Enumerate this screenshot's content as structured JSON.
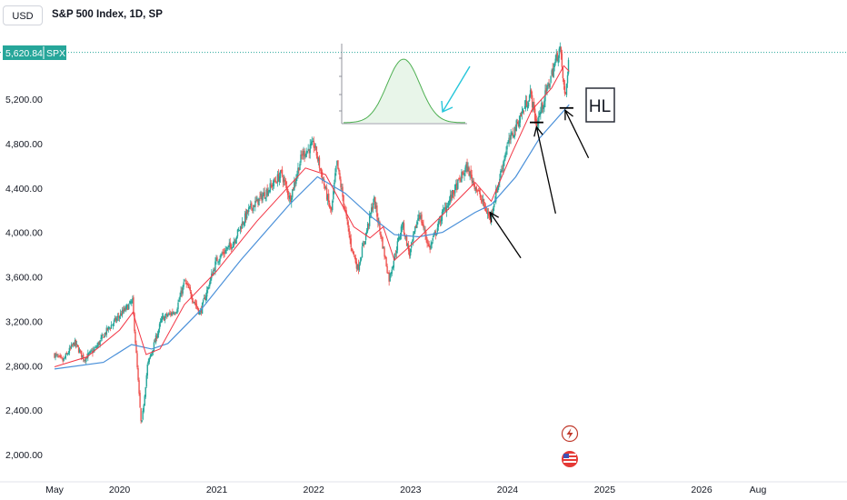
{
  "header": {
    "currency": "USD",
    "title": "S&P 500 Index, 1D, SP"
  },
  "badge": {
    "price": "5,620.84",
    "symbol": "SPX"
  },
  "annotation": {
    "hl_label": "HL"
  },
  "colors": {
    "up": "#26a69a",
    "down": "#ef5350",
    "ma_fast": "#f23645",
    "ma_slow": "#4a90d9",
    "price_line": "#26a69a",
    "arrow": "#000000",
    "bell_curve": "#4caf50",
    "bell_fill": "#e8f5e9",
    "cyan_arrow": "#26c6da"
  },
  "icons": [
    "lightning-icon",
    "us-flag-icon"
  ],
  "chart_data": {
    "type": "candlestick",
    "title": "S&P 500 Index, 1D, SP",
    "last_price": 5620.84,
    "ylim": [
      1900,
      5800
    ],
    "y_ticks": [
      "2,000.00",
      "2,400.00",
      "2,800.00",
      "3,200.00",
      "3,600.00",
      "4,000.00",
      "4,400.00",
      "4,800.00",
      "5,200.00"
    ],
    "y_tick_values": [
      2000,
      2400,
      2800,
      3200,
      3600,
      4000,
      4400,
      4800,
      5200
    ],
    "x_ticks": [
      "May",
      "2020",
      "2021",
      "2022",
      "2023",
      "2024",
      "2025",
      "2026",
      "Aug"
    ],
    "x_tick_dates": [
      "2019-05-01",
      "2020-01-01",
      "2021-01-01",
      "2022-01-01",
      "2023-01-01",
      "2024-01-01",
      "2025-01-01",
      "2026-01-01",
      "2026-08-01"
    ],
    "close_path": [
      [
        "2019-05-01",
        2900
      ],
      [
        "2019-06-01",
        2840
      ],
      [
        "2019-07-15",
        3010
      ],
      [
        "2019-08-20",
        2860
      ],
      [
        "2019-10-01",
        2950
      ],
      [
        "2019-11-15",
        3120
      ],
      [
        "2020-01-01",
        3250
      ],
      [
        "2020-02-19",
        3380
      ],
      [
        "2020-03-01",
        3000
      ],
      [
        "2020-03-23",
        2240
      ],
      [
        "2020-04-15",
        2800
      ],
      [
        "2020-06-08",
        3220
      ],
      [
        "2020-08-01",
        3300
      ],
      [
        "2020-09-02",
        3560
      ],
      [
        "2020-10-30",
        3270
      ],
      [
        "2020-12-31",
        3750
      ],
      [
        "2021-03-01",
        3900
      ],
      [
        "2021-05-01",
        4200
      ],
      [
        "2021-07-01",
        4350
      ],
      [
        "2021-09-02",
        4530
      ],
      [
        "2021-10-04",
        4300
      ],
      [
        "2021-11-18",
        4700
      ],
      [
        "2022-01-03",
        4790
      ],
      [
        "2022-03-08",
        4170
      ],
      [
        "2022-03-29",
        4630
      ],
      [
        "2022-05-20",
        3900
      ],
      [
        "2022-06-16",
        3670
      ],
      [
        "2022-08-16",
        4300
      ],
      [
        "2022-10-12",
        3580
      ],
      [
        "2022-12-01",
        4080
      ],
      [
        "2022-12-28",
        3800
      ],
      [
        "2023-02-02",
        4180
      ],
      [
        "2023-03-13",
        3850
      ],
      [
        "2023-05-01",
        4170
      ],
      [
        "2023-07-31",
        4590
      ],
      [
        "2023-10-27",
        4120
      ],
      [
        "2023-12-29",
        4770
      ],
      [
        "2024-03-28",
        5250
      ],
      [
        "2024-04-19",
        4970
      ],
      [
        "2024-07-16",
        5670
      ],
      [
        "2024-08-05",
        5190
      ],
      [
        "2024-08-20",
        5620
      ]
    ],
    "ma_fast_path": [
      [
        "2019-05-01",
        2790
      ],
      [
        "2019-09-01",
        2880
      ],
      [
        "2020-01-01",
        3120
      ],
      [
        "2020-02-20",
        3280
      ],
      [
        "2020-04-10",
        2900
      ],
      [
        "2020-06-01",
        2950
      ],
      [
        "2020-09-01",
        3350
      ],
      [
        "2020-12-31",
        3650
      ],
      [
        "2021-06-01",
        4100
      ],
      [
        "2021-12-01",
        4580
      ],
      [
        "2022-02-15",
        4520
      ],
      [
        "2022-06-01",
        4050
      ],
      [
        "2022-08-01",
        3950
      ],
      [
        "2022-09-20",
        4050
      ],
      [
        "2022-11-01",
        3750
      ],
      [
        "2023-02-01",
        3950
      ],
      [
        "2023-07-01",
        4300
      ],
      [
        "2023-09-01",
        4450
      ],
      [
        "2023-11-01",
        4280
      ],
      [
        "2024-01-15",
        4700
      ],
      [
        "2024-04-01",
        5100
      ],
      [
        "2024-06-15",
        5300
      ],
      [
        "2024-07-31",
        5500
      ],
      [
        "2024-08-20",
        5450
      ]
    ],
    "ma_slow_path": [
      [
        "2019-05-01",
        2770
      ],
      [
        "2019-11-01",
        2830
      ],
      [
        "2020-02-15",
        2990
      ],
      [
        "2020-05-01",
        2950
      ],
      [
        "2020-07-01",
        3000
      ],
      [
        "2020-11-01",
        3300
      ],
      [
        "2021-04-01",
        3750
      ],
      [
        "2021-10-01",
        4250
      ],
      [
        "2022-01-15",
        4500
      ],
      [
        "2022-05-01",
        4350
      ],
      [
        "2022-08-01",
        4150
      ],
      [
        "2022-11-01",
        3980
      ],
      [
        "2023-02-01",
        3960
      ],
      [
        "2023-05-01",
        4000
      ],
      [
        "2023-09-01",
        4180
      ],
      [
        "2023-11-01",
        4250
      ],
      [
        "2024-02-01",
        4500
      ],
      [
        "2024-05-01",
        4850
      ],
      [
        "2024-08-20",
        5150
      ]
    ],
    "arrows": [
      {
        "from": [
          "2024-02-20",
          3770
        ],
        "to": [
          "2023-10-27",
          4180
        ]
      },
      {
        "from": [
          "2024-06-30",
          4170
        ],
        "to": [
          "2024-04-19",
          4950
        ]
      },
      {
        "from": [
          "2024-11-01",
          4670
        ],
        "to": [
          "2024-08-05",
          5100
        ]
      }
    ],
    "support_marks": [
      {
        "from": "2024-03-25",
        "to": "2024-05-15",
        "value": 4990
      },
      {
        "from": "2024-07-15",
        "to": "2024-09-05",
        "value": 5120
      }
    ]
  }
}
